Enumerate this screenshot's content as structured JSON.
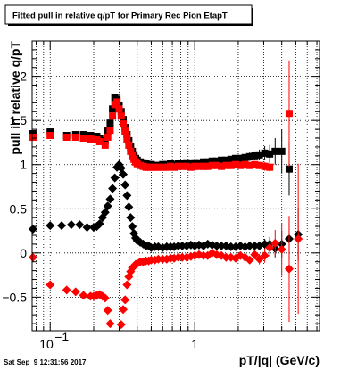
{
  "chart_data": {
    "type": "scatter",
    "title": "Fitted pull in relative q/pT for Primary Rec Pion EtapT",
    "xlabel": "pT/|q| (GeV/c)",
    "ylabel": "pull in relative q/pT",
    "x_scale": "log",
    "xlim": [
      0.075,
      7.3
    ],
    "ylim": [
      -0.88,
      2.4
    ],
    "x_ticks": [
      {
        "value": 0.1,
        "base": "10",
        "exp": "−1"
      },
      {
        "value": 1,
        "label": "1"
      }
    ],
    "y_ticks": [
      {
        "value": -0.5,
        "label": "−0.5"
      },
      {
        "value": 0,
        "label": "0"
      },
      {
        "value": 0.5,
        "label": "0.5"
      },
      {
        "value": 1,
        "label": "1"
      },
      {
        "value": 1.5,
        "label": "1.5"
      },
      {
        "value": 2,
        "label": "2"
      }
    ],
    "grid": true,
    "timestamp": "Sat Sep  9 12:31:56 2017",
    "series": [
      {
        "marker": "square",
        "color": "#000000",
        "x": [
          0.076,
          0.1,
          0.13,
          0.15,
          0.17,
          0.19,
          0.21,
          0.22,
          0.24,
          0.25,
          0.26,
          0.27,
          0.28,
          0.29,
          0.3,
          0.31,
          0.32,
          0.33,
          0.34,
          0.35,
          0.36,
          0.37,
          0.38,
          0.39,
          0.4,
          0.42,
          0.44,
          0.46,
          0.48,
          0.5,
          0.53,
          0.56,
          0.6,
          0.64,
          0.68,
          0.72,
          0.77,
          0.82,
          0.88,
          0.94,
          1.0,
          1.07,
          1.15,
          1.23,
          1.32,
          1.42,
          1.53,
          1.65,
          1.78,
          1.92,
          2.07,
          2.23,
          2.4,
          2.6,
          2.8,
          3.05,
          3.3,
          3.6,
          4.0,
          4.5
        ],
        "y": [
          1.35,
          1.37,
          1.33,
          1.34,
          1.34,
          1.33,
          1.32,
          1.3,
          1.27,
          1.38,
          1.47,
          1.63,
          1.76,
          1.74,
          1.67,
          1.6,
          1.51,
          1.42,
          1.34,
          1.27,
          1.2,
          1.15,
          1.11,
          1.07,
          1.05,
          1.03,
          1.02,
          1.01,
          1.0,
          1.0,
          0.99,
          0.99,
          1.0,
          1.0,
          1.01,
          1.0,
          1.01,
          1.01,
          1.02,
          1.01,
          1.02,
          1.02,
          1.03,
          1.03,
          1.04,
          1.04,
          1.05,
          1.05,
          1.06,
          1.07,
          1.07,
          1.08,
          1.09,
          1.1,
          1.11,
          1.13,
          1.12,
          1.15,
          1.15,
          0.95
        ],
        "err": [
          0.03,
          0.02,
          0.02,
          0.02,
          0.02,
          0.02,
          0.02,
          0.02,
          0.02,
          0.02,
          0.02,
          0.02,
          0.02,
          0.02,
          0.02,
          0.02,
          0.02,
          0.02,
          0.02,
          0.02,
          0.02,
          0.02,
          0.02,
          0.02,
          0.02,
          0.02,
          0.02,
          0.02,
          0.02,
          0.02,
          0.02,
          0.02,
          0.02,
          0.02,
          0.02,
          0.02,
          0.02,
          0.02,
          0.02,
          0.02,
          0.02,
          0.02,
          0.02,
          0.02,
          0.02,
          0.03,
          0.03,
          0.03,
          0.03,
          0.03,
          0.04,
          0.04,
          0.05,
          0.05,
          0.06,
          0.08,
          0.1,
          0.15,
          0.25,
          0.3
        ]
      },
      {
        "marker": "square",
        "color": "#ff0000",
        "x": [
          0.076,
          0.1,
          0.13,
          0.15,
          0.17,
          0.19,
          0.21,
          0.22,
          0.24,
          0.25,
          0.26,
          0.27,
          0.28,
          0.29,
          0.3,
          0.31,
          0.32,
          0.33,
          0.34,
          0.35,
          0.36,
          0.37,
          0.38,
          0.39,
          0.4,
          0.42,
          0.44,
          0.46,
          0.48,
          0.5,
          0.53,
          0.56,
          0.6,
          0.64,
          0.68,
          0.72,
          0.77,
          0.82,
          0.88,
          0.94,
          1.0,
          1.07,
          1.15,
          1.23,
          1.32,
          1.42,
          1.53,
          1.65,
          1.78,
          1.92,
          2.07,
          2.23,
          2.4,
          2.6,
          2.8,
          3.05,
          3.3,
          4.5
        ],
        "y": [
          1.31,
          1.33,
          1.31,
          1.31,
          1.3,
          1.29,
          1.28,
          1.26,
          1.22,
          1.31,
          1.39,
          1.55,
          1.68,
          1.71,
          1.63,
          1.55,
          1.46,
          1.38,
          1.29,
          1.22,
          1.15,
          1.1,
          1.06,
          1.03,
          1.01,
          0.99,
          0.98,
          0.97,
          0.97,
          0.97,
          0.97,
          0.97,
          0.97,
          0.97,
          0.98,
          0.97,
          0.98,
          0.98,
          0.98,
          0.97,
          0.98,
          0.98,
          0.98,
          0.98,
          0.99,
          0.99,
          0.98,
          0.99,
          0.99,
          1.0,
          0.99,
          1.0,
          0.99,
          1.0,
          0.99,
          0.98,
          0.97,
          1.58
        ],
        "err": [
          0.03,
          0.02,
          0.02,
          0.02,
          0.02,
          0.02,
          0.02,
          0.02,
          0.02,
          0.02,
          0.02,
          0.02,
          0.02,
          0.02,
          0.02,
          0.02,
          0.02,
          0.02,
          0.02,
          0.02,
          0.02,
          0.02,
          0.02,
          0.02,
          0.02,
          0.02,
          0.02,
          0.02,
          0.02,
          0.02,
          0.02,
          0.02,
          0.02,
          0.02,
          0.02,
          0.02,
          0.02,
          0.02,
          0.02,
          0.02,
          0.02,
          0.02,
          0.02,
          0.02,
          0.02,
          0.02,
          0.02,
          0.02,
          0.02,
          0.02,
          0.03,
          0.03,
          0.03,
          0.03,
          0.04,
          0.05,
          0.05,
          0.6
        ]
      },
      {
        "marker": "diamond",
        "color": "#000000",
        "x": [
          0.076,
          0.1,
          0.12,
          0.14,
          0.16,
          0.18,
          0.2,
          0.21,
          0.22,
          0.23,
          0.24,
          0.25,
          0.26,
          0.27,
          0.28,
          0.29,
          0.3,
          0.31,
          0.32,
          0.33,
          0.34,
          0.35,
          0.36,
          0.37,
          0.38,
          0.39,
          0.4,
          0.42,
          0.44,
          0.46,
          0.48,
          0.5,
          0.53,
          0.56,
          0.6,
          0.64,
          0.68,
          0.72,
          0.77,
          0.82,
          0.88,
          0.94,
          1.0,
          1.07,
          1.15,
          1.23,
          1.32,
          1.42,
          1.53,
          1.65,
          1.78,
          1.92,
          2.07,
          2.23,
          2.4,
          2.6,
          2.8,
          3.05,
          3.3,
          3.6,
          4.0,
          4.5,
          5.2
        ],
        "y": [
          0.27,
          0.31,
          0.31,
          0.32,
          0.32,
          0.29,
          0.29,
          0.3,
          0.33,
          0.4,
          0.46,
          0.53,
          0.61,
          0.73,
          0.85,
          0.97,
          1.0,
          0.96,
          0.89,
          0.77,
          0.65,
          0.52,
          0.4,
          0.3,
          0.22,
          0.17,
          0.14,
          0.12,
          0.1,
          0.08,
          0.08,
          0.06,
          0.07,
          0.07,
          0.06,
          0.07,
          0.07,
          0.07,
          0.08,
          0.08,
          0.08,
          0.09,
          0.08,
          0.09,
          0.08,
          0.1,
          0.09,
          0.08,
          0.08,
          0.08,
          0.07,
          0.07,
          0.08,
          0.07,
          0.08,
          0.08,
          0.08,
          0.1,
          0.1,
          0.05,
          0.1,
          0.16,
          0.21
        ],
        "err": [
          0.04,
          0.02,
          0.02,
          0.02,
          0.02,
          0.02,
          0.02,
          0.02,
          0.02,
          0.02,
          0.02,
          0.02,
          0.02,
          0.02,
          0.02,
          0.02,
          0.02,
          0.02,
          0.02,
          0.02,
          0.02,
          0.02,
          0.02,
          0.02,
          0.02,
          0.02,
          0.02,
          0.02,
          0.02,
          0.02,
          0.02,
          0.02,
          0.02,
          0.02,
          0.02,
          0.02,
          0.02,
          0.02,
          0.02,
          0.02,
          0.02,
          0.02,
          0.02,
          0.02,
          0.02,
          0.02,
          0.02,
          0.02,
          0.03,
          0.03,
          0.03,
          0.03,
          0.03,
          0.03,
          0.04,
          0.04,
          0.05,
          0.06,
          0.08,
          0.1,
          0.15,
          0.25,
          0.3
        ]
      },
      {
        "marker": "diamond",
        "color": "#ff0000",
        "x": [
          0.076,
          0.1,
          0.13,
          0.15,
          0.17,
          0.19,
          0.2,
          0.21,
          0.22,
          0.23,
          0.24,
          0.25,
          0.26,
          0.31,
          0.32,
          0.33,
          0.34,
          0.35,
          0.36,
          0.37,
          0.38,
          0.39,
          0.4,
          0.42,
          0.44,
          0.46,
          0.48,
          0.5,
          0.53,
          0.56,
          0.6,
          0.64,
          0.68,
          0.72,
          0.77,
          0.82,
          0.88,
          0.94,
          1.0,
          1.07,
          1.15,
          1.23,
          1.32,
          1.42,
          1.53,
          1.65,
          1.78,
          1.92,
          2.07,
          2.23,
          2.4,
          2.6,
          2.8,
          3.05,
          3.3,
          3.6,
          4.0,
          4.5,
          5.2
        ],
        "y": [
          -0.05,
          -0.36,
          -0.42,
          -0.44,
          -0.48,
          -0.49,
          -0.49,
          -0.48,
          -0.47,
          -0.49,
          -0.51,
          -0.65,
          -0.8,
          -0.81,
          -0.64,
          -0.53,
          -0.36,
          -0.27,
          -0.21,
          -0.17,
          -0.15,
          -0.13,
          -0.12,
          -0.1,
          -0.1,
          -0.09,
          -0.09,
          -0.08,
          -0.08,
          -0.07,
          -0.07,
          -0.07,
          -0.06,
          -0.06,
          -0.05,
          -0.05,
          -0.05,
          -0.04,
          -0.03,
          -0.02,
          -0.03,
          -0.03,
          0.0,
          -0.02,
          -0.03,
          -0.05,
          -0.05,
          -0.06,
          -0.03,
          -0.05,
          -0.08,
          -0.02,
          -0.07,
          -0.03,
          0.06,
          0.11,
          0.04,
          -0.18,
          0.16
        ],
        "err": [
          0.04,
          0.02,
          0.02,
          0.02,
          0.02,
          0.02,
          0.02,
          0.02,
          0.02,
          0.02,
          0.02,
          0.02,
          0.02,
          0.02,
          0.02,
          0.02,
          0.02,
          0.02,
          0.02,
          0.02,
          0.02,
          0.02,
          0.02,
          0.02,
          0.02,
          0.02,
          0.02,
          0.02,
          0.02,
          0.02,
          0.02,
          0.02,
          0.02,
          0.02,
          0.02,
          0.02,
          0.02,
          0.02,
          0.02,
          0.02,
          0.02,
          0.02,
          0.02,
          0.02,
          0.02,
          0.02,
          0.03,
          0.03,
          0.03,
          0.03,
          0.04,
          0.05,
          0.06,
          0.08,
          0.1,
          0.15,
          0.3,
          0.6,
          0.85
        ]
      }
    ]
  }
}
